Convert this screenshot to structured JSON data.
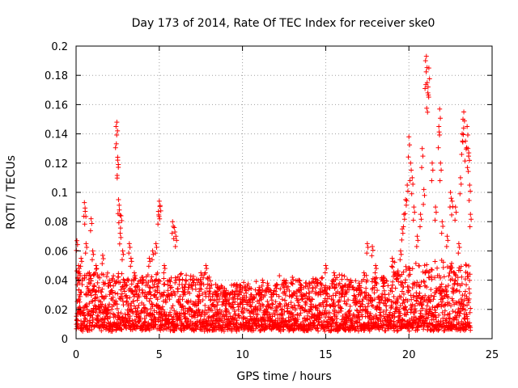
{
  "chart_data": {
    "type": "scatter",
    "title": "Day 173 of 2014, Rate Of TEC Index for receiver ske0",
    "xlabel": "GPS time / hours",
    "ylabel": "ROTI / TECUs",
    "xlim": [
      0,
      25
    ],
    "ylim": [
      0,
      0.2
    ],
    "xticks": [
      0,
      5,
      10,
      15,
      20,
      25
    ],
    "xtick_labels": [
      "0",
      "5",
      "10",
      "15",
      "20",
      "25"
    ],
    "yticks": [
      0,
      0.02,
      0.04,
      0.06,
      0.08,
      0.1,
      0.12,
      0.14,
      0.16,
      0.18,
      0.2
    ],
    "ytick_labels": [
      "0",
      "0.02",
      "0.04",
      "0.06",
      "0.08",
      "0.1",
      "0.12",
      "0.14",
      "0.16",
      "0.18",
      "0.2"
    ],
    "grid": true,
    "marker": "+",
    "color": "#ff0000",
    "series": [
      {
        "name": "ROTI",
        "x": [
          0.05,
          0.1,
          0.15,
          0.2,
          0.3,
          0.5,
          0.55,
          0.6,
          0.8,
          0.9,
          1.0,
          1.2,
          1.6,
          2.0,
          2.4,
          2.45,
          2.5,
          2.5,
          2.55,
          2.6,
          2.65,
          2.7,
          2.8,
          3.2,
          3.3,
          3.5,
          4.0,
          4.4,
          4.6,
          4.8,
          4.95,
          5.0,
          5.05,
          5.3,
          5.8,
          5.9,
          6.0,
          6.5,
          7.0,
          7.5,
          7.8,
          8.0,
          8.5,
          9.0,
          9.5,
          10.0,
          10.5,
          11.0,
          11.2,
          11.5,
          12.0,
          12.5,
          13.0,
          13.5,
          14.0,
          14.5,
          15.0,
          15.5,
          16.0,
          16.5,
          17.0,
          17.3,
          17.5,
          17.8,
          18.0,
          18.5,
          19.0,
          19.3,
          19.5,
          19.6,
          19.7,
          19.8,
          19.9,
          20.0,
          20.1,
          20.2,
          20.3,
          20.5,
          20.7,
          20.8,
          20.9,
          21.0,
          21.05,
          21.1,
          21.15,
          21.2,
          21.4,
          21.6,
          21.8,
          21.85,
          21.9,
          22.0,
          22.3,
          22.5,
          22.6,
          22.8,
          23.0,
          23.1,
          23.2,
          23.25,
          23.3,
          23.4,
          23.5,
          23.55,
          23.6,
          23.65,
          23.7
        ],
        "y": [
          0.067,
          0.041,
          0.05,
          0.03,
          0.055,
          0.093,
          0.087,
          0.065,
          0.045,
          0.082,
          0.06,
          0.05,
          0.057,
          0.04,
          0.145,
          0.148,
          0.122,
          0.124,
          0.095,
          0.088,
          0.072,
          0.084,
          0.06,
          0.065,
          0.055,
          0.045,
          0.042,
          0.055,
          0.06,
          0.065,
          0.087,
          0.094,
          0.091,
          0.05,
          0.08,
          0.076,
          0.07,
          0.035,
          0.04,
          0.045,
          0.05,
          0.032,
          0.036,
          0.025,
          0.03,
          0.028,
          0.03,
          0.035,
          0.04,
          0.038,
          0.036,
          0.04,
          0.042,
          0.035,
          0.038,
          0.04,
          0.05,
          0.045,
          0.035,
          0.04,
          0.038,
          0.045,
          0.065,
          0.063,
          0.05,
          0.04,
          0.055,
          0.045,
          0.06,
          0.075,
          0.085,
          0.095,
          0.105,
          0.138,
          0.12,
          0.11,
          0.09,
          0.07,
          0.085,
          0.13,
          0.102,
          0.19,
          0.193,
          0.175,
          0.172,
          0.185,
          0.12,
          0.09,
          0.145,
          0.157,
          0.12,
          0.08,
          0.07,
          0.1,
          0.094,
          0.09,
          0.065,
          0.11,
          0.14,
          0.15,
          0.155,
          0.135,
          0.145,
          0.13,
          0.127,
          0.105,
          0.085
        ],
        "band_note": "dense background band of ROTI values between about 0.005 and 0.035 TECUs across 0-23.7 h"
      }
    ]
  }
}
